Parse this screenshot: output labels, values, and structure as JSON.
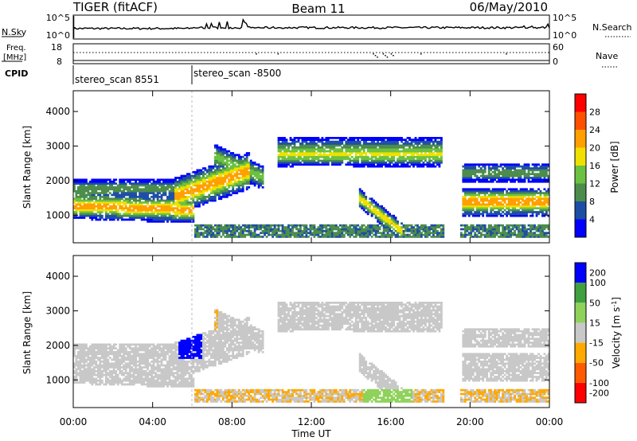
{
  "header": {
    "left": "TIGER (fitACF)",
    "center": "Beam 11",
    "right": "06/May/2010"
  },
  "strips": {
    "nsky_label": "N.Sky",
    "nsky_ticks": [
      "10^5",
      "10^0"
    ],
    "nsearch_label": "N.Search",
    "nsearch_ticks": [
      "10^5",
      "10^0"
    ],
    "freq_label": "Freq.",
    "freq_unit": "[MHz]",
    "freq_ticks": [
      "18",
      "8"
    ],
    "nave_label": "Nave",
    "nave_ticks": [
      "60",
      "0"
    ],
    "cpid_label": "CPID",
    "cpid_segments": [
      {
        "label": "stereo_scan 8551",
        "start_hour": 0,
        "end_hour": 6
      },
      {
        "label": "stereo_scan -8500",
        "start_hour": 6,
        "end_hour": 24
      }
    ]
  },
  "colors": {
    "power": [
      "#0000ff",
      "#1d4ea6",
      "#4c8c4c",
      "#6bc240",
      "#f0e000",
      "#ffa000",
      "#ff5000",
      "#ff0000"
    ],
    "velocity": [
      "#ff0000",
      "#ff5a00",
      "#ffa800",
      "#c8c8c8",
      "#8fd25a",
      "#3fa03f",
      "#0000ff"
    ]
  },
  "chart_data": [
    {
      "type": "heatmap",
      "name": "power",
      "ylabel": "Slant Range [km]",
      "ylim": [
        200,
        4600
      ],
      "yticks": [
        "1000",
        "2000",
        "3000",
        "4000"
      ],
      "xlim": [
        0,
        24
      ],
      "colorbar_label": "Power [dB]",
      "colorbar_ticks": [
        "4",
        "8",
        "12",
        "16",
        "20",
        "24",
        "28"
      ],
      "colorbar_range": [
        0,
        32
      ]
    },
    {
      "type": "heatmap",
      "name": "velocity",
      "ylabel": "Slant Range [km]",
      "ylim": [
        200,
        4600
      ],
      "yticks": [
        "1000",
        "2000",
        "3000",
        "4000"
      ],
      "xlim": [
        0,
        24
      ],
      "xlabel": "Time UT",
      "xticks": [
        "00:00",
        "04:00",
        "08:00",
        "12:00",
        "16:00",
        "20:00",
        "00:00"
      ],
      "colorbar_label": "Velocity [m s",
      "colorbar_label_sup": "-1",
      "colorbar_label_end": "]",
      "colorbar_ticks": [
        "-200",
        "-100",
        "-50",
        "-15",
        "15",
        "50",
        "100",
        "200"
      ]
    }
  ]
}
